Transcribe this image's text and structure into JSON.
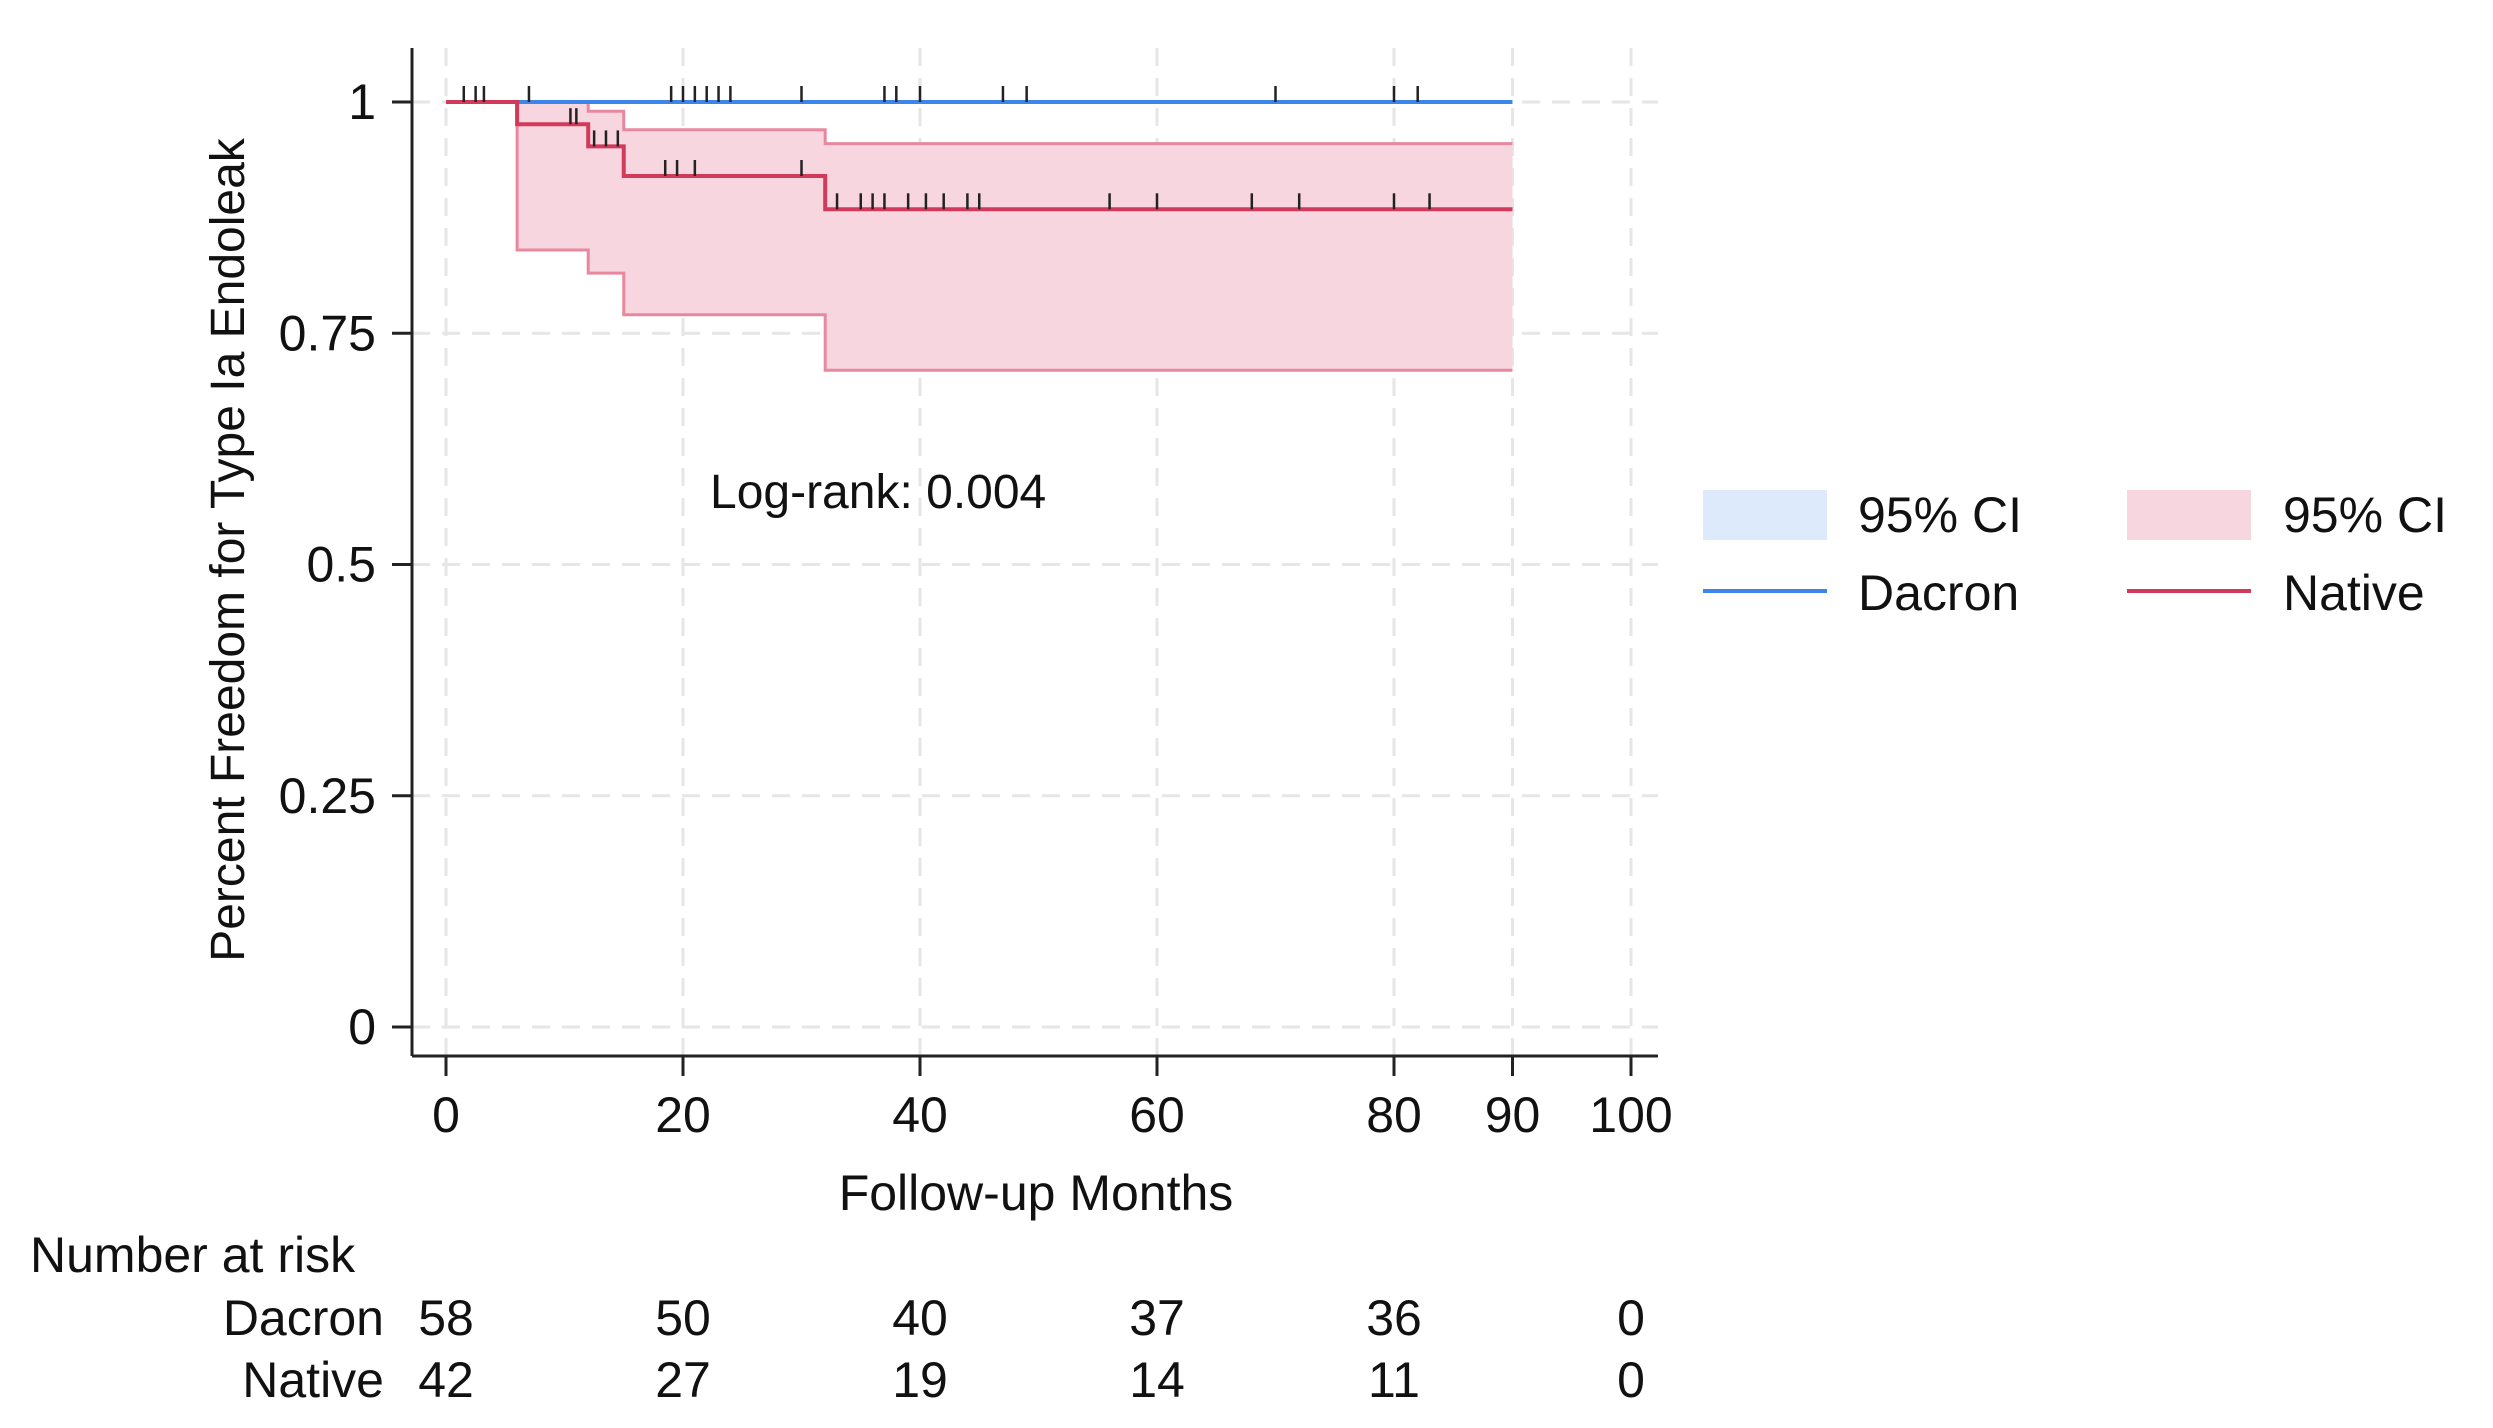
{
  "chart_data": {
    "type": "line",
    "subtype": "kaplan-meier",
    "title": "",
    "xlabel": "Follow-up Months",
    "ylabel": "Percent Freedom for Type Ia Endoleak",
    "xlim": [
      0,
      100
    ],
    "ylim": [
      0,
      1
    ],
    "x_ticks": [
      0,
      20,
      40,
      60,
      80,
      90,
      100
    ],
    "y_ticks": [
      0,
      0.25,
      0.5,
      0.75,
      1
    ],
    "y_tick_labels": [
      "0",
      "0.25",
      "0.5",
      "0.75",
      "1"
    ],
    "grid": true,
    "annotation": "Log-rank: 0.004",
    "legend": {
      "position": "right",
      "entries": [
        {
          "label": "95% CI",
          "kind": "band",
          "series": "Dacron"
        },
        {
          "label": "95% CI",
          "kind": "band",
          "series": "Native"
        },
        {
          "label": "Dacron",
          "kind": "line",
          "series": "Dacron"
        },
        {
          "label": "Native",
          "kind": "line",
          "series": "Native"
        }
      ]
    },
    "series": [
      {
        "name": "Dacron",
        "color": "#3b86e8",
        "band_color": "#dceafb",
        "steps": [
          [
            0,
            1
          ],
          [
            90,
            1
          ]
        ],
        "ci_lower": [
          [
            0,
            1
          ],
          [
            90,
            1
          ]
        ],
        "ci_upper": [
          [
            0,
            1
          ],
          [
            90,
            1
          ]
        ],
        "censor_times": [
          1.5,
          2.5,
          3.2,
          7,
          19,
          20,
          21,
          22,
          23,
          24,
          30,
          37,
          38,
          40,
          47,
          49,
          70,
          80,
          82
        ]
      },
      {
        "name": "Native",
        "color": "#d23a5c",
        "band_color": "#f7d6df",
        "band_edge_color": "#e8889f",
        "steps": [
          [
            0,
            1
          ],
          [
            6,
            0.976
          ],
          [
            12,
            0.952
          ],
          [
            15,
            0.92
          ],
          [
            32,
            0.884
          ],
          [
            90,
            0.884
          ]
        ],
        "ci_lower": [
          [
            0,
            1
          ],
          [
            6,
            0.84
          ],
          [
            12,
            0.815
          ],
          [
            15,
            0.77
          ],
          [
            32,
            0.71
          ],
          [
            90,
            0.71
          ]
        ],
        "ci_upper": [
          [
            0,
            1
          ],
          [
            12,
            0.99
          ],
          [
            15,
            0.97
          ],
          [
            32,
            0.955
          ],
          [
            90,
            0.955
          ]
        ],
        "censor_times": [
          10.5,
          11,
          12.5,
          13.5,
          14.5,
          18.5,
          19.5,
          21,
          30,
          33,
          35,
          36,
          37,
          39,
          40.5,
          42,
          44,
          45,
          56,
          60,
          68,
          72,
          80,
          83
        ]
      }
    ],
    "risk_table": {
      "title": "Number at risk",
      "times": [
        0,
        20,
        40,
        60,
        80,
        100
      ],
      "rows": [
        {
          "label": "Dacron",
          "values": [
            "58",
            "50",
            "40",
            "37",
            "36",
            "0"
          ]
        },
        {
          "label": "Native",
          "values": [
            "42",
            "27",
            "19",
            "14",
            "11",
            "0"
          ]
        }
      ]
    }
  }
}
